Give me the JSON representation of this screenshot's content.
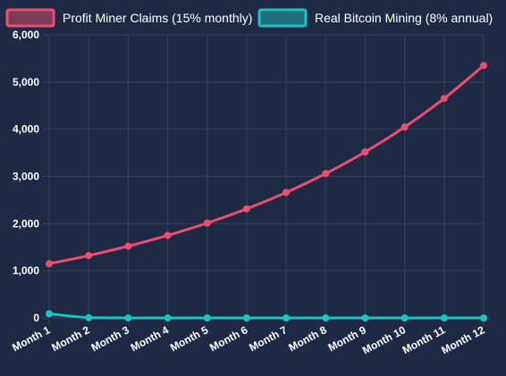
{
  "chart_data": {
    "type": "line",
    "categories": [
      "Month 1",
      "Month 2",
      "Month 3",
      "Month 4",
      "Month 5",
      "Month 6",
      "Month 7",
      "Month 8",
      "Month 9",
      "Month 10",
      "Month 11",
      "Month 12"
    ],
    "series": [
      {
        "name": "Profit Miner Claims (15% monthly)",
        "color": "#ee4d6e",
        "values": [
          1150,
          1322,
          1521,
          1749,
          2011,
          2313,
          2660,
          3059,
          3518,
          4046,
          4652,
          5350
        ]
      },
      {
        "name": "Real Bitcoin Mining (8% annual)",
        "color": "#1cc3c3",
        "values": [
          90,
          7,
          1,
          0.5,
          0.3,
          0.2,
          0.1,
          0.1,
          0.1,
          0.1,
          0.1,
          0.1
        ]
      }
    ],
    "yticks": [
      "0",
      "1,000",
      "2,000",
      "3,000",
      "4,000",
      "5,000",
      "6,000"
    ],
    "ylim": [
      0,
      6000
    ],
    "grid": true,
    "legend": "top",
    "title": "",
    "xlabel": "",
    "ylabel": ""
  }
}
